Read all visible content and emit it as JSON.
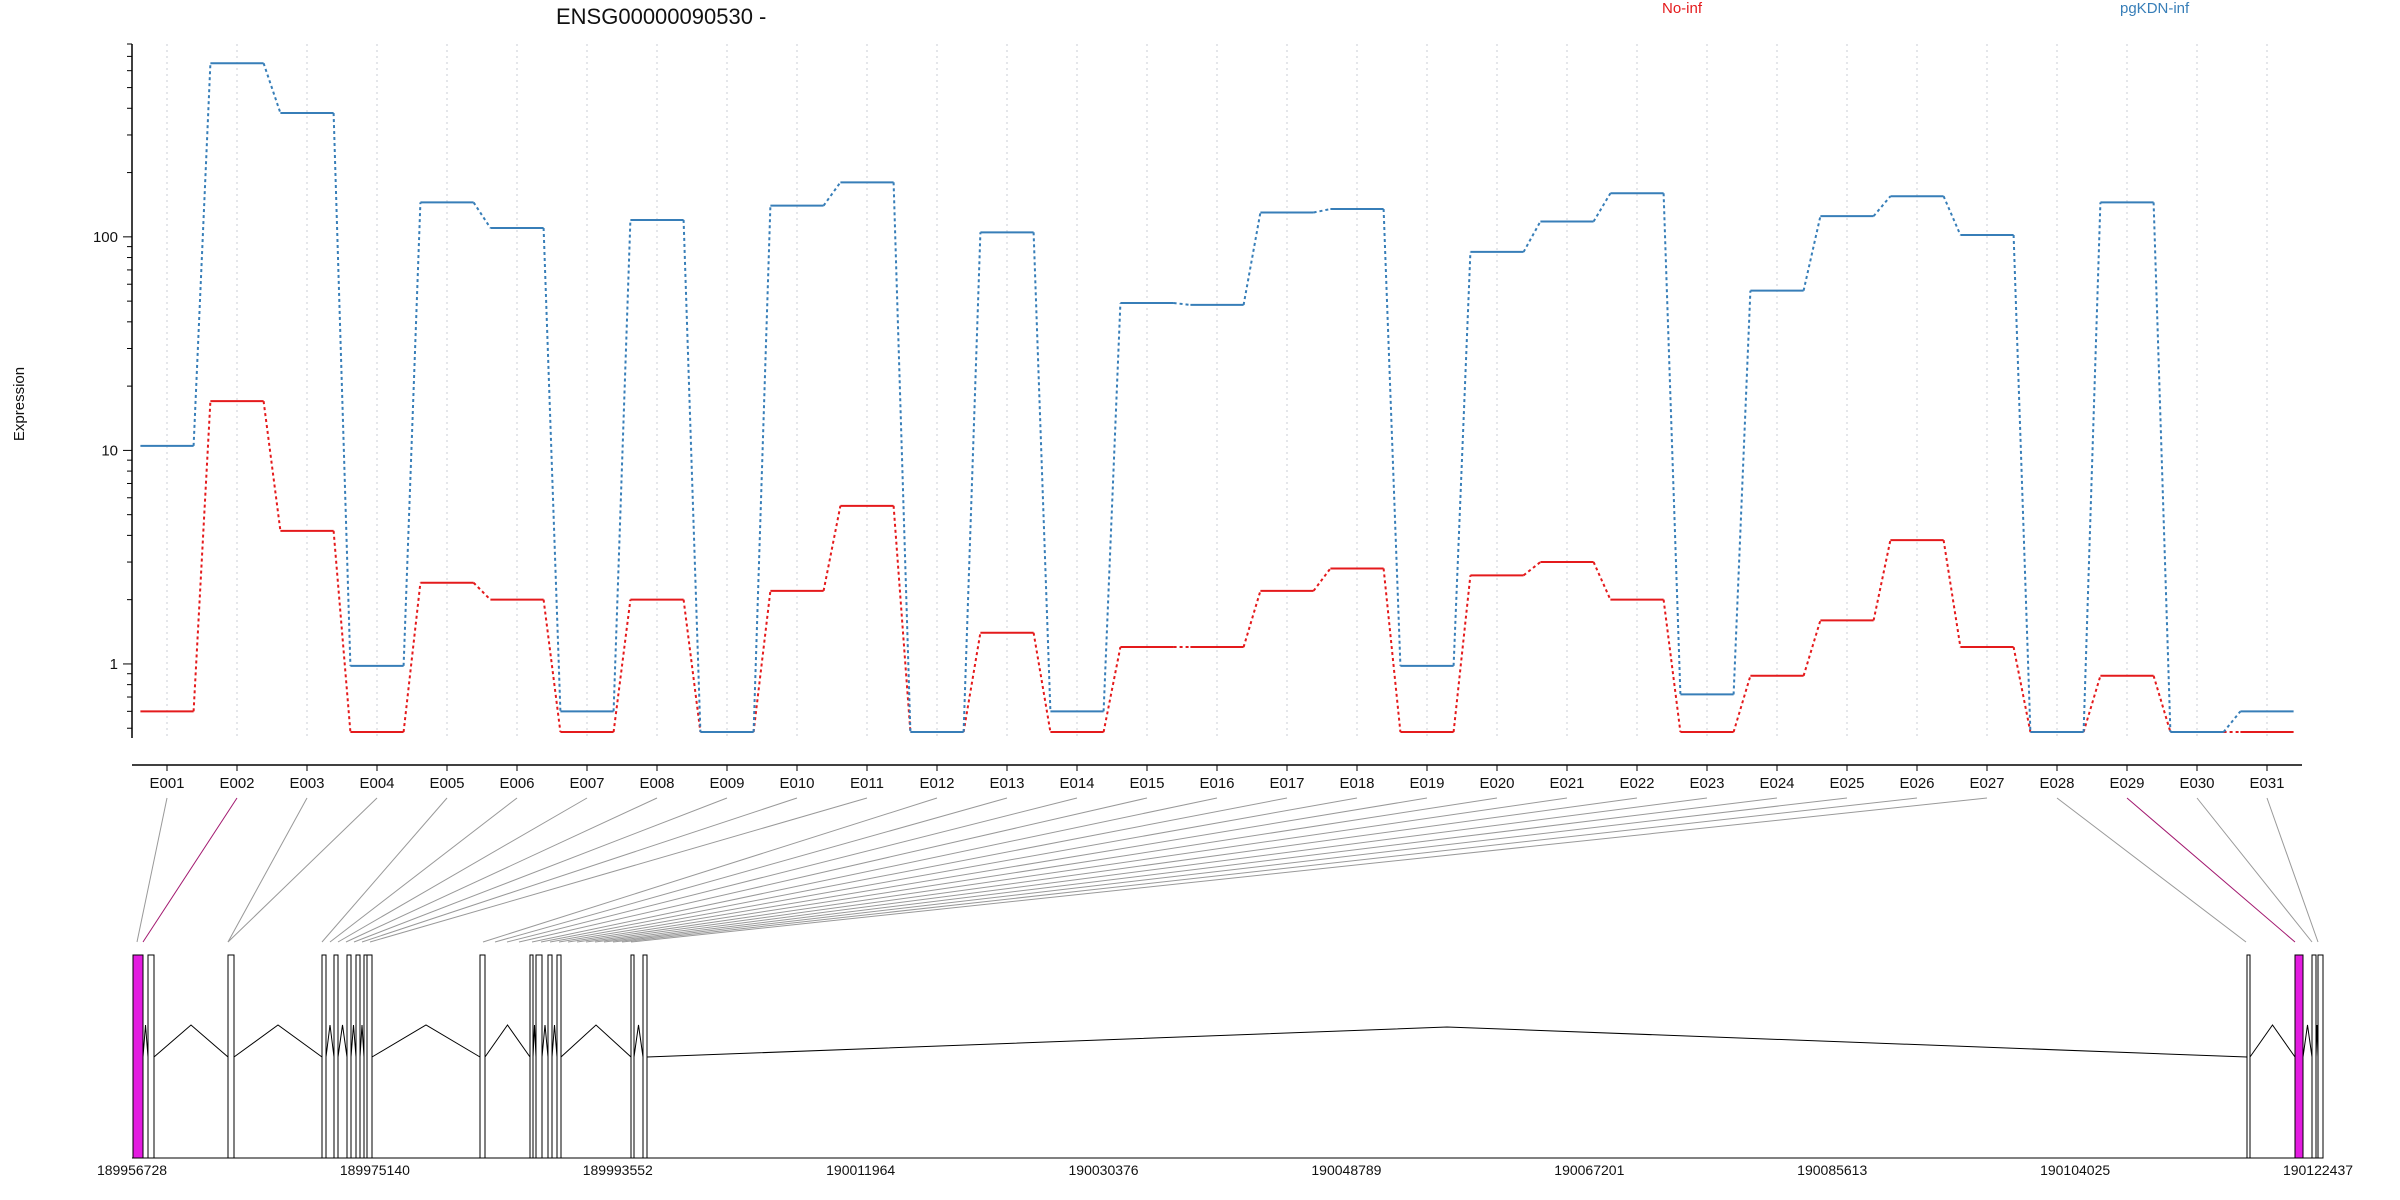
{
  "chart_data": {
    "type": "line",
    "title": "ENSG00000090530 -",
    "xlabel": "",
    "ylabel": "Expression",
    "y_scale": "log",
    "ylim": [
      0.45,
      800
    ],
    "y_ticks": [
      1,
      10,
      100
    ],
    "y_tick_labels": [
      "1",
      "10",
      "100"
    ],
    "grid": "vertical dotted lines at exon bins",
    "legend_position": "top",
    "categories": [
      "E001",
      "E002",
      "E003",
      "E004",
      "E005",
      "E006",
      "E007",
      "E008",
      "E009",
      "E010",
      "E011",
      "E012",
      "E013",
      "E014",
      "E015",
      "E016",
      "E017",
      "E018",
      "E019",
      "E020",
      "E021",
      "E022",
      "E023",
      "E024",
      "E025",
      "E026",
      "E027",
      "E028",
      "E029",
      "E030",
      "E031"
    ],
    "series": [
      {
        "name": "No-inf",
        "color": "#e41a1c",
        "values": [
          0.6,
          17,
          4.2,
          0.48,
          2.4,
          2.0,
          0.48,
          2.0,
          0.48,
          2.2,
          5.5,
          0.48,
          1.4,
          0.48,
          1.2,
          1.2,
          2.2,
          2.8,
          0.48,
          2.6,
          3.0,
          2.0,
          0.48,
          0.88,
          1.6,
          3.8,
          1.2,
          0.48,
          0.88,
          0.48,
          0.48
        ]
      },
      {
        "name": "pgKDN-inf",
        "color": "#377eb8",
        "values": [
          10.5,
          650,
          380,
          0.98,
          145,
          110,
          0.6,
          120,
          0.48,
          140,
          180,
          0.48,
          105,
          0.6,
          49,
          48,
          130,
          135,
          0.98,
          85,
          118,
          160,
          0.72,
          56,
          125,
          155,
          102,
          0.48,
          145,
          0.48,
          0.6
        ]
      }
    ],
    "gene_model": {
      "genomic_axis_labels": [
        "189956728",
        "189975140",
        "189993552",
        "190011964",
        "190030376",
        "190048789",
        "190067201",
        "190085613",
        "190104025",
        "190122437"
      ],
      "exon_highlight_color": "#e31ce0",
      "highlighted_exons": [
        "E002",
        "E029"
      ]
    }
  }
}
